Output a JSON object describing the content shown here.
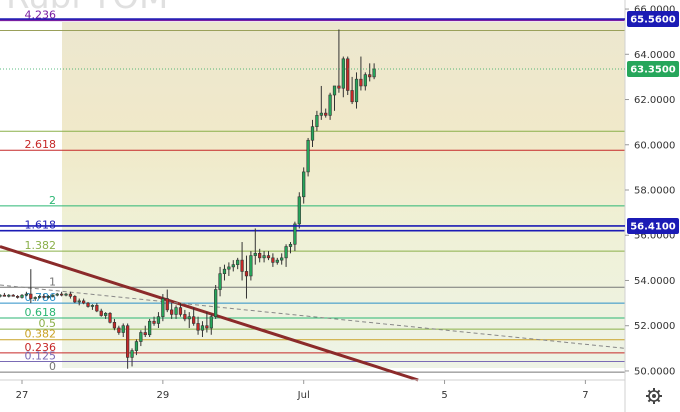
{
  "watermark": "Rubl TOM",
  "colors": {
    "up": "#26a65b",
    "down": "#c62828",
    "bg_top": "#f0ead7",
    "bg_mid": "#f3ecd0",
    "bg_low": "#eef3df",
    "blue_line": "#1b1bb5",
    "purple_line": "#7a1fa2",
    "trend_line": "#8b2a2a",
    "last_price_badge": "#26a65b",
    "level_badge": "#1b1bb5"
  },
  "chart_data": {
    "type": "candlestick",
    "y_axis": {
      "range": [
        49.6,
        66.4
      ],
      "ticks": [
        "66.0000",
        "64.0000",
        "62.0000",
        "60.0000",
        "58.0000",
        "56.0000",
        "54.0000",
        "52.0000",
        "50.0000"
      ],
      "tick_values": [
        66,
        64,
        62,
        60,
        58,
        56,
        54,
        52,
        50
      ]
    },
    "x_axis": {
      "labels": [
        {
          "text": "27",
          "x": 0
        },
        {
          "text": "29",
          "x": 32
        },
        {
          "text": "Jul",
          "x": 64
        },
        {
          "text": "5",
          "x": 96
        },
        {
          "text": "7",
          "x": 128
        }
      ],
      "range": [
        -5,
        137
      ]
    },
    "price_badges": [
      {
        "text": "65.5600",
        "value": 65.56,
        "kind": "level"
      },
      {
        "text": "63.3500",
        "value": 63.35,
        "kind": "last"
      },
      {
        "text": "56.4100",
        "value": 56.41,
        "kind": "level"
      }
    ],
    "fib_levels": [
      {
        "label": "4.236",
        "value": 65.5,
        "color": "#7a1fa2"
      },
      {
        "label": "",
        "value": 65.05,
        "color": "#9aa05a"
      },
      {
        "label": "",
        "value": 60.6,
        "color": "#8bb04a"
      },
      {
        "label": "2.618",
        "value": 59.76,
        "color": "#c62828"
      },
      {
        "label": "2",
        "value": 57.3,
        "color": "#2bb673"
      },
      {
        "label": "1.618",
        "value": 56.2,
        "color": "#1b1bb5"
      },
      {
        "label": "1.382",
        "value": 55.3,
        "color": "#8bb04a"
      },
      {
        "label": "1",
        "value": 53.7,
        "color": "#777777"
      },
      {
        "label": "0.786",
        "value": 53.0,
        "color": "#2a8fc7"
      },
      {
        "label": "0.618",
        "value": 52.34,
        "color": "#2bb673"
      },
      {
        "label": "0.5",
        "value": 51.85,
        "color": "#8bb04a"
      },
      {
        "label": "0.382",
        "value": 51.38,
        "color": "#c9a227"
      },
      {
        "label": "0.236",
        "value": 50.8,
        "color": "#c62828"
      },
      {
        "label": "0.125",
        "value": 50.42,
        "color": "#7a6bb5"
      },
      {
        "label": "0",
        "value": 49.95,
        "color": "#777777"
      }
    ],
    "trend_lines": [
      {
        "x1": -5,
        "y1": 55.5,
        "x2": 90,
        "y2": 49.6,
        "color": "#8b2a2a",
        "style": "solid"
      },
      {
        "x1": -5,
        "y1": 53.8,
        "x2": 137,
        "y2": 51.0,
        "color": "#888888",
        "style": "dashed"
      }
    ],
    "candles": [
      [
        -5,
        53.3,
        53.4,
        53.25,
        53.35
      ],
      [
        -4,
        53.35,
        53.45,
        53.3,
        53.3
      ],
      [
        -3,
        53.3,
        53.4,
        53.25,
        53.35
      ],
      [
        -2,
        53.35,
        53.4,
        53.3,
        53.3
      ],
      [
        -1,
        53.3,
        53.35,
        53.2,
        53.25
      ],
      [
        0,
        53.25,
        53.4,
        53.2,
        53.35
      ],
      [
        1,
        53.35,
        53.5,
        53.3,
        53.4
      ],
      [
        2,
        53.4,
        54.5,
        53.0,
        53.2
      ],
      [
        3,
        53.2,
        53.3,
        53.1,
        53.25
      ],
      [
        4,
        53.25,
        53.35,
        53.2,
        53.3
      ],
      [
        5,
        53.3,
        53.4,
        53.2,
        53.25
      ],
      [
        6,
        53.25,
        53.35,
        53.2,
        53.3
      ],
      [
        7,
        53.3,
        53.4,
        53.25,
        53.35
      ],
      [
        8,
        53.35,
        53.45,
        53.3,
        53.4
      ],
      [
        9,
        53.4,
        53.5,
        53.3,
        53.35
      ],
      [
        10,
        53.35,
        53.45,
        53.3,
        53.4
      ],
      [
        11,
        53.4,
        53.5,
        53.2,
        53.3
      ],
      [
        12,
        53.3,
        53.35,
        53.0,
        53.05
      ],
      [
        13,
        53.05,
        53.2,
        52.9,
        53.1
      ],
      [
        14,
        53.1,
        53.2,
        52.95,
        53.0
      ],
      [
        15,
        53.0,
        53.05,
        52.8,
        52.85
      ],
      [
        16,
        52.85,
        52.95,
        52.7,
        52.9
      ],
      [
        17,
        52.9,
        53.0,
        52.6,
        52.65
      ],
      [
        18,
        52.65,
        52.75,
        52.4,
        52.45
      ],
      [
        19,
        52.45,
        52.6,
        52.3,
        52.55
      ],
      [
        20,
        52.55,
        52.6,
        52.1,
        52.15
      ],
      [
        21,
        52.15,
        52.3,
        51.8,
        51.9
      ],
      [
        22,
        51.9,
        52.0,
        51.6,
        51.7
      ],
      [
        23,
        51.7,
        52.1,
        51.5,
        52.0
      ],
      [
        24,
        52.0,
        52.1,
        50.1,
        50.6
      ],
      [
        25,
        50.6,
        51.0,
        50.2,
        50.9
      ],
      [
        26,
        50.9,
        51.4,
        50.7,
        51.3
      ],
      [
        27,
        51.3,
        51.8,
        51.1,
        51.7
      ],
      [
        28,
        51.7,
        52.0,
        51.5,
        51.6
      ],
      [
        29,
        51.6,
        52.3,
        51.5,
        52.2
      ],
      [
        30,
        52.2,
        52.4,
        52.0,
        52.1
      ],
      [
        31,
        52.1,
        52.6,
        51.9,
        52.4
      ],
      [
        32,
        52.4,
        53.4,
        52.2,
        53.2
      ],
      [
        33,
        53.2,
        53.6,
        52.6,
        52.7
      ],
      [
        34,
        52.7,
        53.0,
        52.3,
        52.5
      ],
      [
        35,
        52.5,
        52.9,
        52.3,
        52.8
      ],
      [
        36,
        52.8,
        53.0,
        52.4,
        52.5
      ],
      [
        37,
        52.5,
        52.7,
        52.2,
        52.3
      ],
      [
        38,
        52.3,
        52.6,
        51.9,
        52.4
      ],
      [
        39,
        52.4,
        52.8,
        52.0,
        52.1
      ],
      [
        40,
        52.1,
        52.4,
        51.6,
        51.8
      ],
      [
        41,
        51.8,
        52.2,
        51.5,
        52.0
      ],
      [
        42,
        52.0,
        52.6,
        51.7,
        51.9
      ],
      [
        43,
        51.9,
        52.5,
        51.6,
        52.4
      ],
      [
        44,
        52.4,
        53.8,
        52.3,
        53.6
      ],
      [
        45,
        53.6,
        54.6,
        53.3,
        54.3
      ],
      [
        46,
        54.3,
        54.7,
        54.0,
        54.5
      ],
      [
        47,
        54.5,
        54.8,
        54.2,
        54.6
      ],
      [
        48,
        54.6,
        54.9,
        54.4,
        54.7
      ],
      [
        49,
        54.7,
        55.0,
        54.5,
        54.9
      ],
      [
        50,
        54.9,
        55.7,
        54.0,
        54.4
      ],
      [
        51,
        54.4,
        55.1,
        53.2,
        54.2
      ],
      [
        52,
        54.2,
        55.3,
        54.0,
        55.1
      ],
      [
        53,
        55.1,
        56.3,
        54.7,
        55.2
      ],
      [
        54,
        55.2,
        55.4,
        54.8,
        55.0
      ],
      [
        55,
        55.0,
        55.3,
        54.8,
        55.1
      ],
      [
        56,
        55.1,
        55.3,
        54.9,
        55.0
      ],
      [
        57,
        55.0,
        55.2,
        54.6,
        54.8
      ],
      [
        58,
        54.8,
        55.0,
        54.7,
        54.9
      ],
      [
        59,
        54.9,
        55.2,
        54.7,
        55.0
      ],
      [
        60,
        55.0,
        55.6,
        54.6,
        55.5
      ],
      [
        61,
        55.5,
        55.7,
        55.2,
        55.6
      ],
      [
        62,
        55.6,
        56.6,
        55.3,
        56.5
      ],
      [
        63,
        56.5,
        57.9,
        56.3,
        57.7
      ],
      [
        64,
        57.7,
        59.0,
        57.4,
        58.8
      ],
      [
        65,
        58.8,
        60.3,
        58.6,
        60.2
      ],
      [
        66,
        60.2,
        61.1,
        59.9,
        60.8
      ],
      [
        67,
        60.8,
        61.5,
        60.6,
        61.3
      ],
      [
        68,
        61.3,
        62.6,
        61.1,
        61.4
      ],
      [
        69,
        61.4,
        61.6,
        61.2,
        61.3
      ],
      [
        70,
        61.3,
        62.3,
        61.1,
        62.2
      ],
      [
        71,
        62.2,
        62.6,
        61.5,
        62.6
      ],
      [
        72,
        62.6,
        65.1,
        62.3,
        62.5
      ],
      [
        73,
        62.5,
        63.9,
        62.1,
        63.8
      ],
      [
        74,
        63.8,
        63.9,
        62.2,
        62.4
      ],
      [
        75,
        62.4,
        63.0,
        61.8,
        61.9
      ],
      [
        76,
        61.9,
        63.2,
        61.6,
        62.9
      ],
      [
        77,
        62.9,
        63.9,
        62.4,
        62.6
      ],
      [
        78,
        62.6,
        63.2,
        62.4,
        63.1
      ],
      [
        79,
        63.1,
        63.6,
        62.8,
        63.0
      ],
      [
        80,
        63.0,
        63.6,
        62.9,
        63.35
      ]
    ]
  }
}
